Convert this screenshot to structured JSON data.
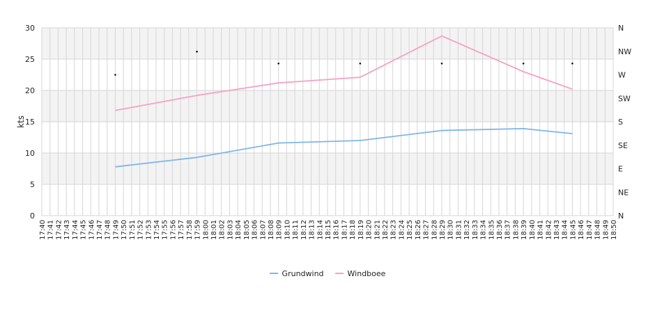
{
  "chart_data": {
    "type": "line",
    "ylabel": "kts",
    "ylim": [
      0,
      30
    ],
    "yticks": [
      0,
      5,
      10,
      15,
      20,
      25,
      30
    ],
    "y2_ticks": [
      "N",
      "NE",
      "E",
      "SE",
      "S",
      "SW",
      "W",
      "NW",
      "N"
    ],
    "x_ticks": [
      "17:40",
      "17:41",
      "17:42",
      "17:43",
      "17:44",
      "17:45",
      "17:46",
      "17:47",
      "17:48",
      "17:49",
      "17:50",
      "17:51",
      "17:52",
      "17:53",
      "17:54",
      "17:55",
      "17:56",
      "17:57",
      "17:58",
      "17:59",
      "18:00",
      "18:01",
      "18:02",
      "18:03",
      "18:04",
      "18:05",
      "18:06",
      "18:07",
      "18:08",
      "18:09",
      "18:10",
      "18:11",
      "18:12",
      "18:13",
      "18:14",
      "18:15",
      "18:16",
      "18:17",
      "18:18",
      "18:19",
      "18:20",
      "18:21",
      "18:22",
      "18:23",
      "18:24",
      "18:25",
      "18:26",
      "18:27",
      "18:28",
      "18:29",
      "18:30",
      "18:31",
      "18:32",
      "18:33",
      "18:34",
      "18:35",
      "18:36",
      "18:37",
      "18:38",
      "18:39",
      "18:40",
      "18:41",
      "18:42",
      "18:43",
      "18:44",
      "18:45",
      "18:46",
      "18:47",
      "18:48",
      "18:49",
      "18:50"
    ],
    "x": [
      "17:49",
      "17:59",
      "18:09",
      "18:19",
      "18:29",
      "18:39",
      "18:45"
    ],
    "series": [
      {
        "name": "Grundwind",
        "color": "#7cb5ec",
        "values": [
          7.8,
          9.3,
          11.6,
          12.0,
          13.6,
          13.9,
          13.1
        ]
      },
      {
        "name": "Windboee",
        "color": "#f7a1c4",
        "values": [
          16.8,
          19.2,
          21.2,
          22.1,
          28.7,
          23.0,
          20.2
        ]
      }
    ],
    "direction": {
      "x": [
        "17:49",
        "17:59",
        "18:09",
        "18:19",
        "18:29",
        "18:39",
        "18:45"
      ],
      "values": [
        22.5,
        26.2,
        24.3,
        24.3,
        24.3,
        24.3,
        24.3
      ]
    },
    "grid": true,
    "band_color": "#f3f3f3",
    "legend_position": "bottom"
  }
}
